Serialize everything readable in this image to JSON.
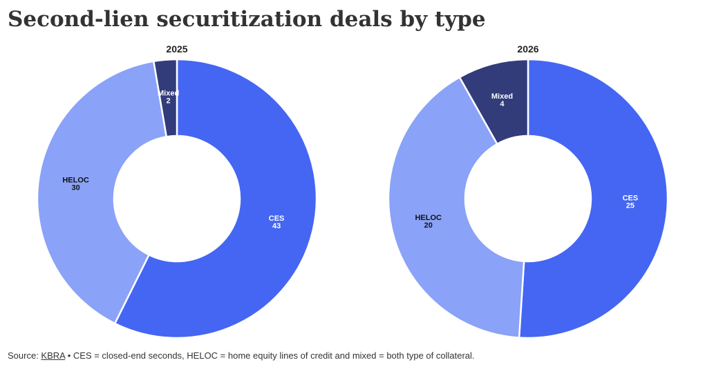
{
  "title": "Second-lien securitization deals by type",
  "colors": {
    "CES": "#4466f2",
    "HELOC": "#8aa2f7",
    "Mixed": "#323c7a"
  },
  "label_colors": {
    "CES": "#ffffff",
    "HELOC": "#111111",
    "Mixed": "#ffffff"
  },
  "chart_data": [
    {
      "type": "pie",
      "title": "2025",
      "categories": [
        "CES",
        "HELOC",
        "Mixed"
      ],
      "values": [
        43,
        30,
        2
      ],
      "donut": true
    },
    {
      "type": "pie",
      "title": "2026",
      "categories": [
        "CES",
        "HELOC",
        "Mixed"
      ],
      "values": [
        25,
        20,
        4
      ],
      "donut": true
    }
  ],
  "footer": {
    "source_prefix": "Source: ",
    "source_link": "KBRA",
    "note": " • CES = closed-end seconds, HELOC = home equity lines of credit and mixed = both type of collateral."
  }
}
